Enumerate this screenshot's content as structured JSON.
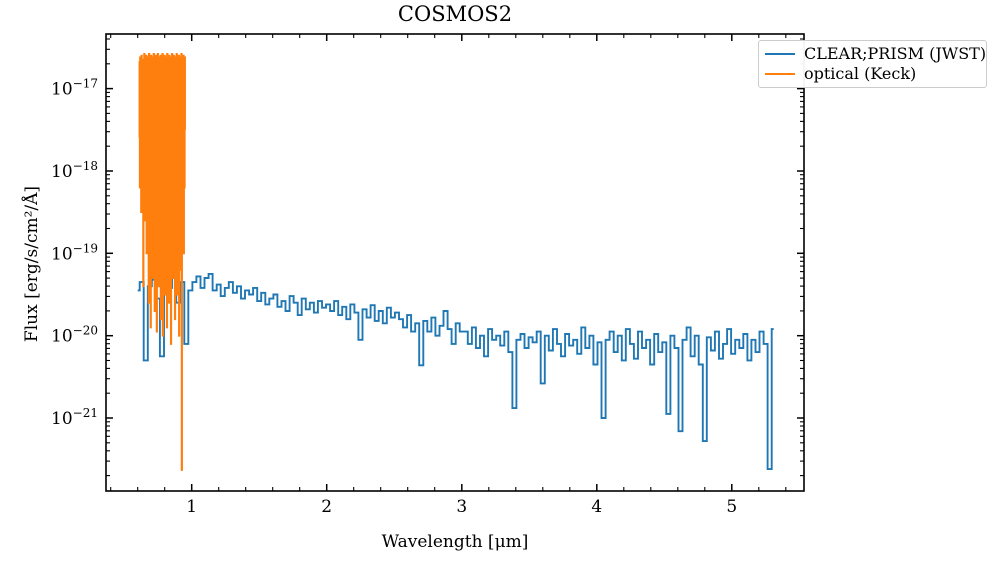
{
  "title": "COSMOS2",
  "axes": {
    "xlabel": "Wavelength [μm]",
    "ylabel": "Flux [erg/s/cm²/Å]",
    "xlim": [
      0.3655,
      5.5345
    ],
    "ylog_lim": [
      -21.886,
      -16.337
    ],
    "xtick_values": [
      1,
      2,
      3,
      4,
      5
    ],
    "xtick_labels": [
      "1",
      "2",
      "3",
      "4",
      "5"
    ],
    "xminor_step": 0.2,
    "ytick_exponents": [
      -17,
      -18,
      -19,
      -20,
      -21
    ]
  },
  "legend": {
    "entries": [
      {
        "label": "CLEAR;PRISM (JWST)",
        "color": "#1f77b4"
      },
      {
        "label": "optical (Keck)",
        "color": "#ff7f0e"
      }
    ]
  },
  "chart_data": {
    "type": "line",
    "title": "COSMOS2",
    "xlabel": "Wavelength [μm]",
    "ylabel": "Flux [erg/s/cm^2/Å]",
    "xscale": "linear",
    "yscale": "log",
    "xlim": [
      0.3655,
      5.5345
    ],
    "ylim": [
      1.3e-22,
      4.6e-17
    ],
    "grid": false,
    "legend_position": "upper right",
    "series": [
      {
        "name": "CLEAR;PRISM (JWST)",
        "color": "#1f77b4",
        "style": "steps-mid",
        "x_start": 0.6,
        "x_step": 0.03,
        "log10_flux": [
          -19.45,
          -19.35,
          -20.3,
          -19.4,
          -19.32,
          -19.55,
          -20.25,
          -19.38,
          -19.42,
          -19.3,
          -19.6,
          -19.35,
          -20.1,
          -19.45,
          -19.35,
          -19.28,
          -19.42,
          -19.3,
          -19.25,
          -19.45,
          -19.38,
          -19.52,
          -19.42,
          -19.35,
          -19.48,
          -19.4,
          -19.55,
          -19.45,
          -19.5,
          -19.42,
          -19.58,
          -19.48,
          -19.62,
          -19.55,
          -19.5,
          -19.65,
          -19.58,
          -19.7,
          -19.52,
          -19.6,
          -19.75,
          -19.55,
          -19.68,
          -19.6,
          -19.72,
          -19.58,
          -19.66,
          -19.62,
          -19.7,
          -19.58,
          -19.75,
          -19.65,
          -19.8,
          -19.62,
          -19.72,
          -20.05,
          -19.68,
          -19.78,
          -19.63,
          -19.82,
          -19.7,
          -19.85,
          -19.66,
          -19.78,
          -19.72,
          -19.8,
          -19.9,
          -19.75,
          -19.95,
          -19.85,
          -20.36,
          -19.82,
          -19.95,
          -19.78,
          -20.0,
          -19.88,
          -19.7,
          -19.92,
          -20.1,
          -19.85,
          -19.95,
          -19.95,
          -20.1,
          -19.9,
          -20.15,
          -20.0,
          -20.25,
          -19.92,
          -20.05,
          -20.0,
          -20.12,
          -19.95,
          -20.2,
          -20.88,
          -20.05,
          -19.98,
          -20.15,
          -20.02,
          -20.08,
          -19.95,
          -20.58,
          -20.0,
          -20.18,
          -19.92,
          -20.1,
          -20.25,
          -19.98,
          -20.12,
          -20.05,
          -20.22,
          -19.9,
          -20.15,
          -20.0,
          -20.35,
          -20.08,
          -21.0,
          -20.05,
          -19.95,
          -20.2,
          -20.0,
          -20.3,
          -19.92,
          -20.1,
          -20.28,
          -19.95,
          -20.15,
          -20.05,
          -20.35,
          -19.98,
          -20.2,
          -20.08,
          -20.95,
          -20.0,
          -20.15,
          -21.16,
          -20.05,
          -19.9,
          -20.25,
          -20.0,
          -20.35,
          -21.28,
          -20.02,
          -20.18,
          -19.95,
          -20.28,
          -20.1,
          -19.92,
          -20.22,
          -20.05,
          -20.15,
          -19.98,
          -20.3,
          -20.05,
          -20.2,
          -19.95,
          -20.1,
          -21.62,
          -19.92
        ]
      },
      {
        "name": "optical (Keck)",
        "color": "#ff7f0e",
        "style": "steps-mid",
        "x_start": 0.612,
        "x_step": 0.0025,
        "log10_flux": [
          -17.6,
          -16.68,
          -18.2,
          -16.62,
          -17.9,
          -16.72,
          -18.5,
          -16.6,
          -17.7,
          -16.66,
          -18.4,
          -16.65,
          -19.4,
          -16.7,
          -17.8,
          -16.58,
          -18.6,
          -16.64,
          -17.5,
          -16.72,
          -18.3,
          -16.6,
          -19.0,
          -16.66,
          -17.9,
          -16.62,
          -18.7,
          -16.7,
          -19.6,
          -16.58,
          -17.6,
          -16.65,
          -18.2,
          -16.72,
          -19.9,
          -16.6,
          -17.8,
          -16.66,
          -18.5,
          -16.62,
          -19.3,
          -16.7,
          -17.7,
          -16.58,
          -18.8,
          -16.64,
          -19.7,
          -16.68,
          -17.6,
          -16.6,
          -18.3,
          -16.66,
          -19.95,
          -16.72,
          -17.9,
          -16.58,
          -18.6,
          -16.62,
          -19.4,
          -16.68,
          -17.7,
          -16.64,
          -18.9,
          -16.6,
          -19.8,
          -16.7,
          -17.6,
          -16.66,
          -18.4,
          -16.58,
          -20.0,
          -16.64,
          -17.8,
          -16.72,
          -18.7,
          -16.6,
          -19.5,
          -16.66,
          -17.7,
          -16.62,
          -18.5,
          -16.68,
          -19.9,
          -16.58,
          -17.9,
          -16.64,
          -18.3,
          -16.7,
          -19.6,
          -16.6,
          -17.6,
          -16.66,
          -18.8,
          -16.62,
          -20.1,
          -16.72,
          -17.8,
          -16.58,
          -18.5,
          -16.64,
          -19.3,
          -16.68,
          -17.7,
          -16.6,
          -18.9,
          -16.66,
          -19.8,
          -16.62,
          -17.6,
          -16.7,
          -18.4,
          -16.58,
          -19.5,
          -16.64,
          -17.9,
          -16.68,
          -18.6,
          -16.6,
          -20.0,
          -16.66,
          -17.7,
          -16.62,
          -18.8,
          -16.72,
          -19.2,
          -16.58,
          -21.63,
          -16.64,
          -18.3,
          -16.68,
          -17.8,
          -16.6,
          -19.0,
          -16.66,
          -18.2,
          -16.62,
          -17.5
        ]
      }
    ]
  }
}
